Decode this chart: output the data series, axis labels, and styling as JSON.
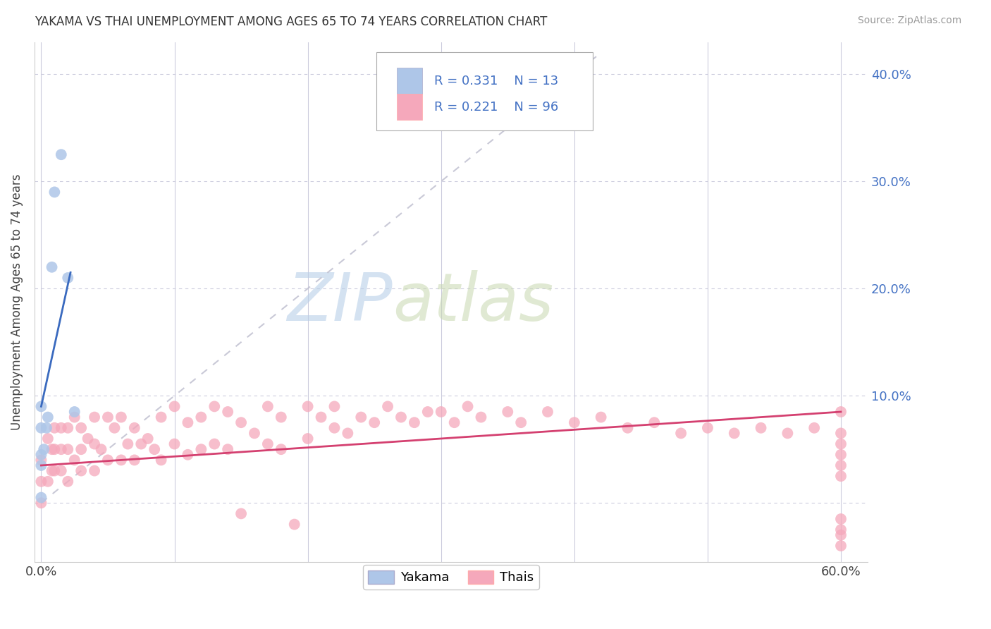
{
  "title": "YAKAMA VS THAI UNEMPLOYMENT AMONG AGES 65 TO 74 YEARS CORRELATION CHART",
  "source": "Source: ZipAtlas.com",
  "ylabel": "Unemployment Among Ages 65 to 74 years",
  "xlim": [
    -0.005,
    0.62
  ],
  "ylim": [
    -0.055,
    0.43
  ],
  "yticks": [
    0.0,
    0.1,
    0.2,
    0.3,
    0.4
  ],
  "ytick_labels": [
    "",
    "10.0%",
    "20.0%",
    "30.0%",
    "40.0%"
  ],
  "xticks": [
    0.0,
    0.1,
    0.2,
    0.3,
    0.4,
    0.5,
    0.6
  ],
  "xtick_labels": [
    "0.0%",
    "",
    "",
    "",
    "",
    "",
    "60.0%"
  ],
  "yakama_R": 0.331,
  "yakama_N": 13,
  "thai_R": 0.221,
  "thai_N": 96,
  "yakama_color": "#aec6e8",
  "thai_color": "#f5a8bb",
  "yakama_line_color": "#3a6abf",
  "thai_line_color": "#d44070",
  "diag_line_color": "#c0c0d0",
  "background_color": "#ffffff",
  "grid_color": "#ccccdd",
  "watermark_zip": "ZIP",
  "watermark_atlas": "atlas",
  "legend_text_color": "#4472c4",
  "legend_labels": [
    "Yakama",
    "Thais"
  ],
  "yakama_x": [
    0.0,
    0.0,
    0.0,
    0.0,
    0.0,
    0.002,
    0.004,
    0.005,
    0.008,
    0.01,
    0.015,
    0.02,
    0.025
  ],
  "yakama_y": [
    0.09,
    0.07,
    0.045,
    0.035,
    0.005,
    0.05,
    0.07,
    0.08,
    0.22,
    0.29,
    0.325,
    0.21,
    0.085
  ],
  "yakama_line_x": [
    0.0,
    0.022
  ],
  "yakama_line_y": [
    0.09,
    0.215
  ],
  "thai_line_x": [
    0.0,
    0.6
  ],
  "thai_line_y": [
    0.035,
    0.085
  ],
  "diag_line_x": [
    0.0,
    0.42
  ],
  "diag_line_y": [
    0.0,
    0.42
  ],
  "thai_x": [
    0.0,
    0.0,
    0.0,
    0.005,
    0.005,
    0.008,
    0.008,
    0.01,
    0.01,
    0.01,
    0.015,
    0.015,
    0.015,
    0.02,
    0.02,
    0.02,
    0.025,
    0.025,
    0.03,
    0.03,
    0.03,
    0.035,
    0.04,
    0.04,
    0.04,
    0.045,
    0.05,
    0.05,
    0.055,
    0.06,
    0.06,
    0.065,
    0.07,
    0.07,
    0.075,
    0.08,
    0.085,
    0.09,
    0.09,
    0.1,
    0.1,
    0.11,
    0.11,
    0.12,
    0.12,
    0.13,
    0.13,
    0.14,
    0.14,
    0.15,
    0.15,
    0.16,
    0.17,
    0.17,
    0.18,
    0.18,
    0.19,
    0.2,
    0.2,
    0.21,
    0.22,
    0.22,
    0.23,
    0.24,
    0.25,
    0.26,
    0.27,
    0.28,
    0.29,
    0.3,
    0.31,
    0.32,
    0.33,
    0.35,
    0.36,
    0.38,
    0.4,
    0.42,
    0.44,
    0.46,
    0.48,
    0.5,
    0.52,
    0.54,
    0.56,
    0.58,
    0.6,
    0.6,
    0.6,
    0.6,
    0.6,
    0.6,
    0.6,
    0.6,
    0.6,
    0.6
  ],
  "thai_y": [
    0.04,
    0.02,
    0.0,
    0.06,
    0.02,
    0.05,
    0.03,
    0.07,
    0.05,
    0.03,
    0.07,
    0.05,
    0.03,
    0.07,
    0.05,
    0.02,
    0.08,
    0.04,
    0.07,
    0.05,
    0.03,
    0.06,
    0.08,
    0.055,
    0.03,
    0.05,
    0.08,
    0.04,
    0.07,
    0.08,
    0.04,
    0.055,
    0.07,
    0.04,
    0.055,
    0.06,
    0.05,
    0.08,
    0.04,
    0.09,
    0.055,
    0.075,
    0.045,
    0.08,
    0.05,
    0.09,
    0.055,
    0.085,
    0.05,
    -0.01,
    0.075,
    0.065,
    0.09,
    0.055,
    0.08,
    0.05,
    -0.02,
    0.09,
    0.06,
    0.08,
    0.09,
    0.07,
    0.065,
    0.08,
    0.075,
    0.09,
    0.08,
    0.075,
    0.085,
    0.085,
    0.075,
    0.09,
    0.08,
    0.085,
    0.075,
    0.085,
    0.075,
    0.08,
    0.07,
    0.075,
    0.065,
    0.07,
    0.065,
    0.07,
    0.065,
    0.07,
    0.085,
    0.065,
    0.055,
    0.045,
    0.035,
    0.025,
    -0.015,
    -0.025,
    -0.03,
    -0.04
  ]
}
